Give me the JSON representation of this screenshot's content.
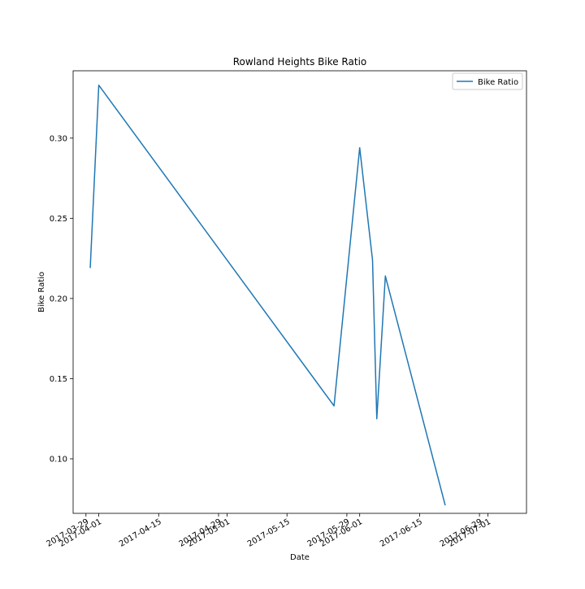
{
  "chart_data": {
    "type": "line",
    "title": "Rowland Heights Bike Ratio",
    "xlabel": "Date",
    "ylabel": "Bike Ratio",
    "xlim": [
      "2017-03-26",
      "2017-07-10"
    ],
    "ylim": [
      0.066,
      0.342
    ],
    "x_ticks": [
      "2017-03-29",
      "2017-04-01",
      "2017-04-15",
      "2017-04-29",
      "2017-05-01",
      "2017-05-15",
      "2017-05-29",
      "2017-06-01",
      "2017-06-15",
      "2017-06-29",
      "2017-07-01"
    ],
    "y_ticks": [
      "0.10",
      "0.15",
      "0.20",
      "0.25",
      "0.30"
    ],
    "y_tick_values": [
      0.1,
      0.15,
      0.2,
      0.25,
      0.3
    ],
    "grid": false,
    "legend_position": "top-right",
    "color": "#1f77b4",
    "series": [
      {
        "name": "Bike Ratio",
        "x": [
          "2017-03-30",
          "2017-04-01",
          "2017-05-26",
          "2017-06-01",
          "2017-06-04",
          "2017-06-05",
          "2017-06-07",
          "2017-06-21"
        ],
        "y": [
          0.219,
          0.333,
          0.133,
          0.294,
          0.224,
          0.125,
          0.214,
          0.071
        ]
      }
    ]
  }
}
